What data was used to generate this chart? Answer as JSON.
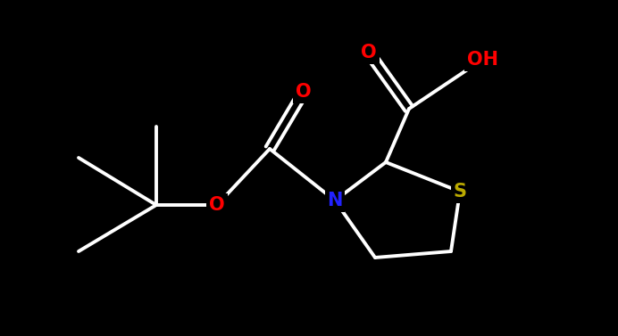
{
  "background_color": "#000000",
  "bond_color": "#ffffff",
  "atom_colors": {
    "O": "#ff0000",
    "N": "#2222ff",
    "S": "#bbaa00",
    "C": "#ffffff",
    "H": "#ffffff"
  },
  "bond_width": 2.8,
  "font_size_atom": 15,
  "figsize": [
    6.92,
    3.77
  ],
  "dpi": 100
}
